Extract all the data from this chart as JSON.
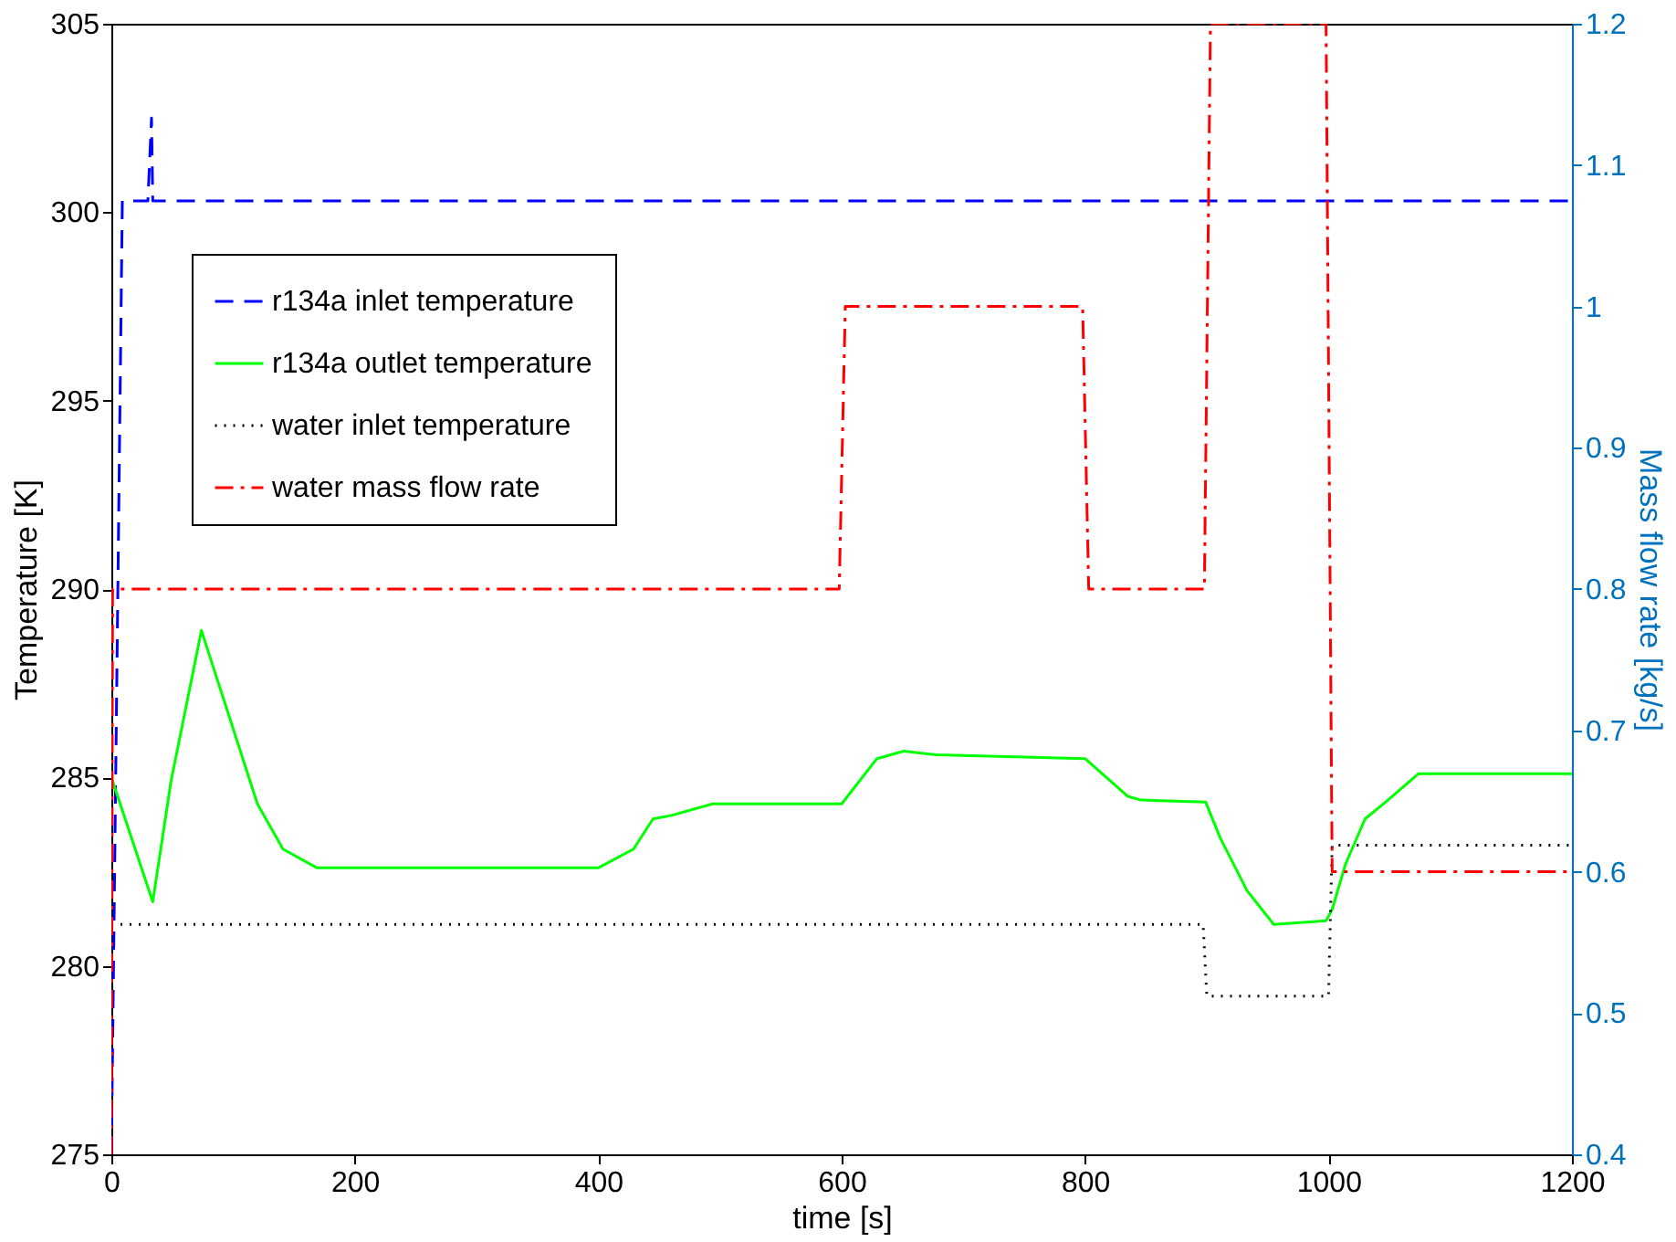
{
  "chart_data": {
    "type": "line",
    "xlabel": "time [s]",
    "ylabel": "Temperature [K]",
    "y2label": "Mass flow rate [kg/s]",
    "xlim": [
      0,
      1200
    ],
    "xticks": [
      0,
      200,
      400,
      600,
      800,
      1000,
      1200
    ],
    "ylim": [
      275,
      305
    ],
    "yticks": [
      275,
      280,
      285,
      290,
      295,
      300,
      305
    ],
    "y2lim": [
      0.4,
      1.2
    ],
    "y2ticks": [
      0.4,
      0.5,
      0.6,
      0.7,
      0.8,
      0.9,
      1,
      1.1,
      1.2
    ],
    "grid": false,
    "legend": "top left",
    "series": [
      {
        "name": "r134a inlet temperature",
        "color": "#0000ff",
        "line_style": "dashed",
        "x": [
          0,
          9,
          30,
          33,
          34,
          1200
        ],
        "values": [
          275,
          300.3,
          300.3,
          302.5,
          300.3,
          300.3
        ]
      },
      {
        "name": "r134a outlet temperature",
        "color": "#00ff00",
        "line_style": "solid",
        "x": [
          0,
          34,
          49,
          74,
          93,
          120,
          141,
          169,
          400,
          429,
          445,
          461,
          494,
          600,
          629,
          651,
          678,
          800,
          835,
          846,
          899,
          911,
          933,
          955,
          998,
          1003,
          1014,
          1030,
          1047,
          1074,
          1200
        ],
        "values": [
          285.0,
          281.7,
          284.9,
          288.9,
          287.0,
          284.3,
          283.1,
          282.6,
          282.6,
          283.1,
          283.9,
          284.0,
          284.3,
          284.3,
          285.5,
          285.7,
          285.6,
          285.5,
          284.5,
          284.4,
          284.35,
          283.4,
          282.0,
          281.1,
          281.2,
          281.5,
          282.7,
          283.9,
          284.35,
          285.1,
          285.1
        ]
      },
      {
        "name": "water inlet temperature",
        "color": "#000000",
        "line_style": "dotted",
        "x": [
          0,
          897,
          900,
          1000,
          1003,
          1200
        ],
        "values": [
          281.1,
          281.1,
          279.2,
          279.2,
          283.2,
          283.2
        ]
      },
      {
        "name": "water mass flow rate",
        "color": "#ff0000",
        "line_style": "dashdot",
        "axis": "y2",
        "x": [
          0,
          1,
          598,
          603,
          798,
          803,
          898,
          903,
          998,
          1003,
          1200
        ],
        "values": [
          0.4,
          0.8,
          0.8,
          1.0,
          1.0,
          0.8,
          0.8,
          1.2,
          1.2,
          0.6,
          0.6
        ]
      }
    ]
  }
}
